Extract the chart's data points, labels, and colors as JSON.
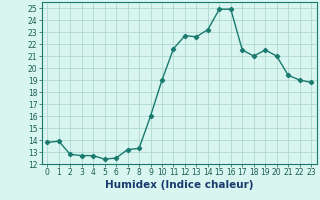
{
  "x": [
    0,
    1,
    2,
    3,
    4,
    5,
    6,
    7,
    8,
    9,
    10,
    11,
    12,
    13,
    14,
    15,
    16,
    17,
    18,
    19,
    20,
    21,
    22,
    23
  ],
  "y": [
    13.8,
    13.9,
    12.8,
    12.7,
    12.7,
    12.4,
    12.5,
    13.2,
    13.3,
    16.0,
    19.0,
    21.6,
    22.7,
    22.6,
    23.2,
    24.9,
    24.9,
    21.5,
    21.0,
    21.5,
    21.0,
    19.4,
    19.0,
    18.8
  ],
  "line_color": "#1a7a6e",
  "marker": "D",
  "marker_size": 2.2,
  "bg_color": "#d8f5f0",
  "grid_color": "#b0d8d2",
  "xlabel": "Humidex (Indice chaleur)",
  "xlim": [
    -0.5,
    23.5
  ],
  "ylim": [
    12,
    25.5
  ],
  "yticks": [
    12,
    13,
    14,
    15,
    16,
    17,
    18,
    19,
    20,
    21,
    22,
    23,
    24,
    25
  ],
  "xticks": [
    0,
    1,
    2,
    3,
    4,
    5,
    6,
    7,
    8,
    9,
    10,
    11,
    12,
    13,
    14,
    15,
    16,
    17,
    18,
    19,
    20,
    21,
    22,
    23
  ],
  "tick_fontsize": 5.5,
  "xlabel_fontsize": 7.5,
  "line_width": 1.0,
  "tick_color": "#1a5c50",
  "xlabel_color": "#1a3a6e"
}
